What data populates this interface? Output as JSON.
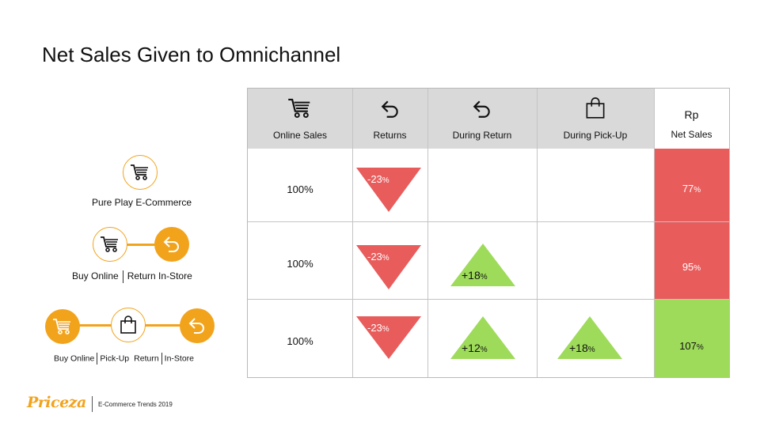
{
  "title": "Net Sales Given to Omnichannel",
  "legend": {
    "pure_play": "Pure Play E-Commerce",
    "buy_online": "Buy Online",
    "return_in_store": "Return In-Store",
    "row3": [
      "Buy Online",
      "Pick-Up",
      "Return",
      "In-Store"
    ]
  },
  "table": {
    "headers": {
      "online_sales": "Online Sales",
      "returns": "Returns",
      "during_return": "During Return",
      "during_pickup": "During Pick-Up",
      "rp": "Rp",
      "net_sales": "Net Sales"
    },
    "rows": [
      {
        "online": "100%",
        "returns": "-23",
        "during_return": "",
        "during_pickup": "",
        "net": "77"
      },
      {
        "online": "100%",
        "returns": "-23",
        "during_return": "+18",
        "during_pickup": "",
        "net": "95"
      },
      {
        "online": "100%",
        "returns": "-23",
        "during_return": "+12",
        "during_pickup": "+18",
        "net": "107"
      }
    ],
    "percent": "%"
  },
  "icons": [
    "cart-icon",
    "return-arrow-icon",
    "shopping-bag-icon"
  ],
  "colors": {
    "accent": "#f2a31c",
    "negative": "#e85c5c",
    "positive": "#9edb5a",
    "header": "#d9d9d9"
  },
  "footer": {
    "brand": "Priceza",
    "text": "E-Commerce Trends 2019"
  }
}
